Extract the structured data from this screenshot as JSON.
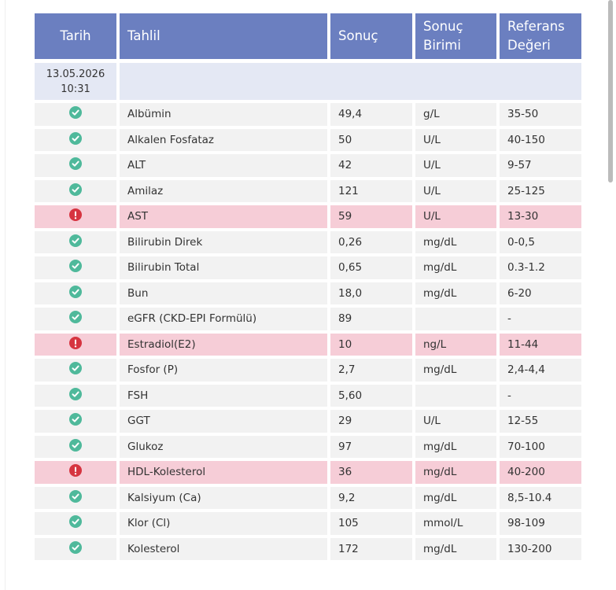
{
  "table": {
    "headers": [
      "Tarih",
      "Tahlil",
      "Sonuç",
      "Sonuç\nBirimi",
      "Referans\nDeğeri"
    ],
    "date": "13.05.2026\n10:31",
    "rows": [
      {
        "alert": false,
        "test": "Albümin",
        "result": "49,4",
        "unit": "g/L",
        "reference": "35-50"
      },
      {
        "alert": false,
        "test": "Alkalen Fosfataz",
        "result": "50",
        "unit": "U/L",
        "reference": "40-150"
      },
      {
        "alert": false,
        "test": "ALT",
        "result": "42",
        "unit": "U/L",
        "reference": "9-57"
      },
      {
        "alert": false,
        "test": "Amilaz",
        "result": "121",
        "unit": "U/L",
        "reference": "25-125"
      },
      {
        "alert": true,
        "test": "AST",
        "result": "59",
        "unit": "U/L",
        "reference": "13-30"
      },
      {
        "alert": false,
        "test": "Bilirubin Direk",
        "result": "0,26",
        "unit": "mg/dL",
        "reference": "0-0,5"
      },
      {
        "alert": false,
        "test": "Bilirubin Total",
        "result": "0,65",
        "unit": "mg/dL",
        "reference": "0.3-1.2"
      },
      {
        "alert": false,
        "test": "Bun",
        "result": "18,0",
        "unit": "mg/dL",
        "reference": "6-20"
      },
      {
        "alert": false,
        "test": "eGFR (CKD-EPI Formülü)",
        "result": "89",
        "unit": null,
        "reference": "-"
      },
      {
        "alert": true,
        "test": "Estradiol(E2)",
        "result": "10",
        "unit": "ng/L",
        "reference": "11-44"
      },
      {
        "alert": false,
        "test": "Fosfor (P)",
        "result": "2,7",
        "unit": "mg/dL",
        "reference": "2,4-4,4"
      },
      {
        "alert": false,
        "test": "FSH",
        "result": "5,60",
        "unit": null,
        "reference": "-"
      },
      {
        "alert": false,
        "test": "GGT",
        "result": "29",
        "unit": "U/L",
        "reference": "12-55"
      },
      {
        "alert": false,
        "test": "Glukoz",
        "result": "97",
        "unit": "mg/dL",
        "reference": "70-100"
      },
      {
        "alert": true,
        "test": "HDL-Kolesterol",
        "result": "36",
        "unit": "mg/dL",
        "reference": "40-200"
      },
      {
        "alert": false,
        "test": "Kalsiyum (Ca)",
        "result": "9,2",
        "unit": "mg/dL",
        "reference": "8,5-10.4"
      },
      {
        "alert": false,
        "test": "Klor (Cl)",
        "result": "105",
        "unit": "mmol/L",
        "reference": "98-109"
      },
      {
        "alert": false,
        "test": "Kolesterol",
        "result": "172",
        "unit": "mg/dL",
        "reference": "130-200"
      }
    ]
  }
}
